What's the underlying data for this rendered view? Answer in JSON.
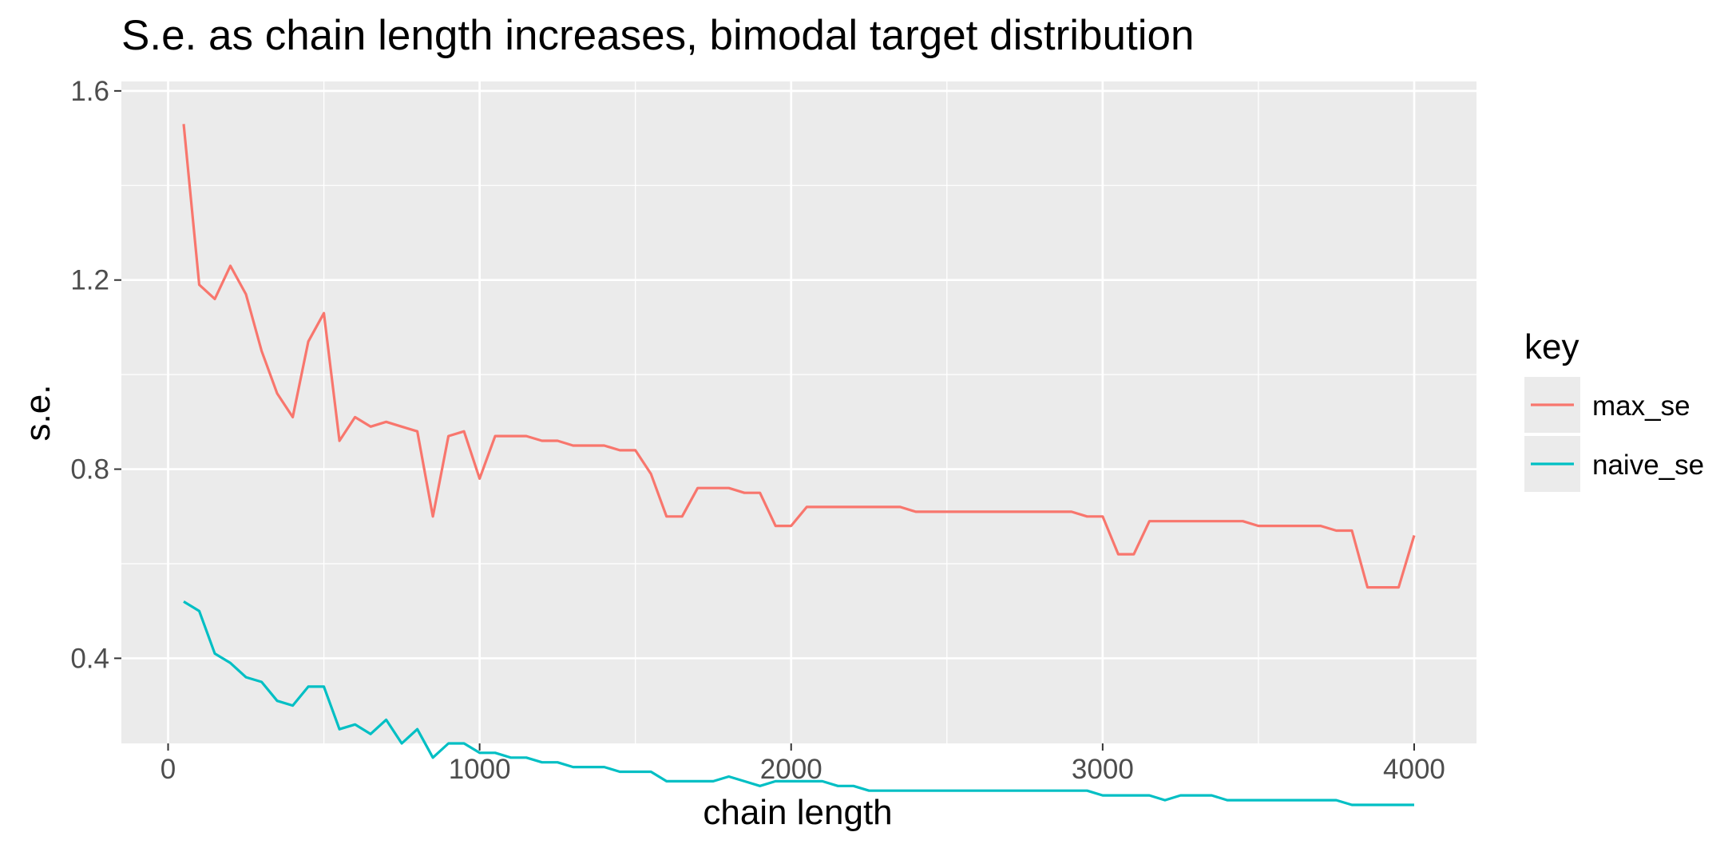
{
  "chart_data": {
    "type": "line",
    "title": "S.e. as chain length increases, bimodal target distribution",
    "xlabel": "chain length",
    "ylabel": "s.e.",
    "xlim": [
      -150,
      4200
    ],
    "ylim": [
      0.22,
      1.62
    ],
    "x_ticks": [
      0,
      1000,
      2000,
      3000,
      4000
    ],
    "x_tick_labels": [
      "0",
      "1000",
      "2000",
      "3000",
      "4000"
    ],
    "y_ticks": [
      0.4,
      0.8,
      1.2,
      1.6
    ],
    "y_tick_labels": [
      "0.4",
      "0.8",
      "1.2",
      "1.6"
    ],
    "x_minor_ticks": [
      500,
      1500,
      2500,
      3500
    ],
    "y_minor_ticks": [
      0.6,
      1.0,
      1.4
    ],
    "grid": true,
    "background": "#ebebeb",
    "legend": {
      "title": "key",
      "position": "right"
    },
    "x": [
      50,
      100,
      150,
      200,
      250,
      300,
      350,
      400,
      450,
      500,
      550,
      600,
      650,
      700,
      750,
      800,
      850,
      900,
      950,
      1000,
      1050,
      1100,
      1150,
      1200,
      1250,
      1300,
      1350,
      1400,
      1450,
      1500,
      1550,
      1600,
      1650,
      1700,
      1750,
      1800,
      1850,
      1900,
      1950,
      2000,
      2050,
      2100,
      2150,
      2200,
      2250,
      2300,
      2350,
      2400,
      2450,
      2500,
      2550,
      2600,
      2650,
      2700,
      2750,
      2800,
      2850,
      2900,
      2950,
      3000,
      3050,
      3100,
      3150,
      3200,
      3250,
      3300,
      3350,
      3400,
      3450,
      3500,
      3550,
      3600,
      3650,
      3700,
      3750,
      3800,
      3850,
      3900,
      3950,
      4000
    ],
    "series": [
      {
        "name": "max_se",
        "color": "#f8766d",
        "values": [
          1.53,
          1.19,
          1.16,
          1.23,
          1.17,
          1.05,
          0.96,
          0.91,
          1.07,
          1.13,
          0.86,
          0.91,
          0.89,
          0.9,
          0.89,
          0.88,
          0.7,
          0.87,
          0.88,
          0.78,
          0.87,
          0.87,
          0.87,
          0.86,
          0.86,
          0.85,
          0.85,
          0.85,
          0.84,
          0.84,
          0.79,
          0.7,
          0.7,
          0.76,
          0.76,
          0.76,
          0.75,
          0.75,
          0.68,
          0.68,
          0.72,
          0.72,
          0.72,
          0.72,
          0.72,
          0.72,
          0.72,
          0.71,
          0.71,
          0.71,
          0.71,
          0.71,
          0.71,
          0.71,
          0.71,
          0.71,
          0.71,
          0.71,
          0.7,
          0.7,
          0.62,
          0.62,
          0.69,
          0.69,
          0.69,
          0.69,
          0.69,
          0.69,
          0.69,
          0.68,
          0.68,
          0.68,
          0.68,
          0.68,
          0.67,
          0.67,
          0.55,
          0.55,
          0.55,
          0.66
        ]
      },
      {
        "name": "naive_se",
        "color": "#00bfc4",
        "values": [
          0.52,
          0.5,
          0.41,
          0.39,
          0.36,
          0.35,
          0.31,
          0.3,
          0.34,
          0.34,
          0.25,
          0.26,
          0.24,
          0.27,
          0.22,
          0.25,
          0.19,
          0.22,
          0.22,
          0.2,
          0.2,
          0.19,
          0.19,
          0.18,
          0.18,
          0.17,
          0.17,
          0.17,
          0.16,
          0.16,
          0.16,
          0.14,
          0.14,
          0.14,
          0.14,
          0.15,
          0.14,
          0.13,
          0.14,
          0.14,
          0.14,
          0.14,
          0.13,
          0.13,
          0.12,
          0.12,
          0.12,
          0.12,
          0.12,
          0.12,
          0.12,
          0.12,
          0.12,
          0.12,
          0.12,
          0.12,
          0.12,
          0.12,
          0.12,
          0.11,
          0.11,
          0.11,
          0.11,
          0.1,
          0.11,
          0.11,
          0.11,
          0.1,
          0.1,
          0.1,
          0.1,
          0.1,
          0.1,
          0.1,
          0.1,
          0.09,
          0.09,
          0.09,
          0.09,
          0.09
        ]
      }
    ]
  }
}
